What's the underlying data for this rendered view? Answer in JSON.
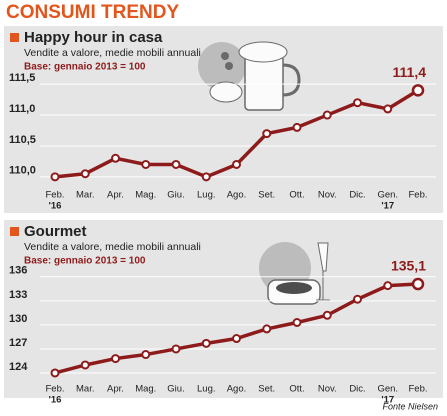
{
  "title": "CONSUMI TRENDY",
  "source": "Fonte Nielsen",
  "chart_data": [
    {
      "type": "line",
      "title": "Happy hour in casa",
      "subtitle": "Vendite a valore, medie mobili annuali",
      "note": "Base: gennaio 2013 = 100",
      "categories": [
        "Feb.",
        "Mar.",
        "Apr.",
        "Mag.",
        "Giu.",
        "Lug.",
        "Ago.",
        "Set.",
        "Ott.",
        "Nov.",
        "Dic.",
        "Gen.",
        "Feb."
      ],
      "year_labels": [
        "'16",
        null,
        null,
        null,
        null,
        null,
        null,
        null,
        null,
        null,
        null,
        "'17",
        null
      ],
      "values": [
        110.0,
        110.05,
        110.3,
        110.2,
        110.2,
        110.0,
        110.2,
        110.7,
        110.8,
        111.0,
        111.2,
        111.1,
        111.4
      ],
      "value_labels": [
        null,
        null,
        null,
        null,
        null,
        null,
        null,
        null,
        null,
        null,
        null,
        null,
        "111,4"
      ],
      "color": "#8e1b1b",
      "ylim": [
        109.9,
        111.6
      ],
      "yticks": [
        {
          "value": 110.0,
          "label": "110,0"
        },
        {
          "value": 110.5,
          "label": "110,5"
        },
        {
          "value": 111.0,
          "label": "111,0"
        },
        {
          "value": 111.5,
          "label": "111,5"
        }
      ],
      "grid": true
    },
    {
      "type": "line",
      "title": "Gourmet",
      "subtitle": "Vendite a valore, medie mobili annuali",
      "note": "Base: gennaio 2013 = 100",
      "categories": [
        "Feb.",
        "Mar.",
        "Apr.",
        "Mag.",
        "Giu.",
        "Lug.",
        "Ago.",
        "Set.",
        "Ott.",
        "Nov.",
        "Dic.",
        "Gen.",
        "Feb."
      ],
      "year_labels": [
        "'16",
        null,
        null,
        null,
        null,
        null,
        null,
        null,
        null,
        null,
        null,
        "'17",
        null
      ],
      "values": [
        124.0,
        125.0,
        125.8,
        126.3,
        127.0,
        127.7,
        128.3,
        129.5,
        130.3,
        131.2,
        133.2,
        134.9,
        135.1
      ],
      "value_labels": [
        null,
        null,
        null,
        null,
        null,
        null,
        null,
        null,
        null,
        null,
        null,
        null,
        "135,1"
      ],
      "color": "#8e1b1b",
      "ylim": [
        123.5,
        136.6
      ],
      "yticks": [
        124,
        127,
        130,
        133,
        136
      ],
      "grid": true
    }
  ]
}
